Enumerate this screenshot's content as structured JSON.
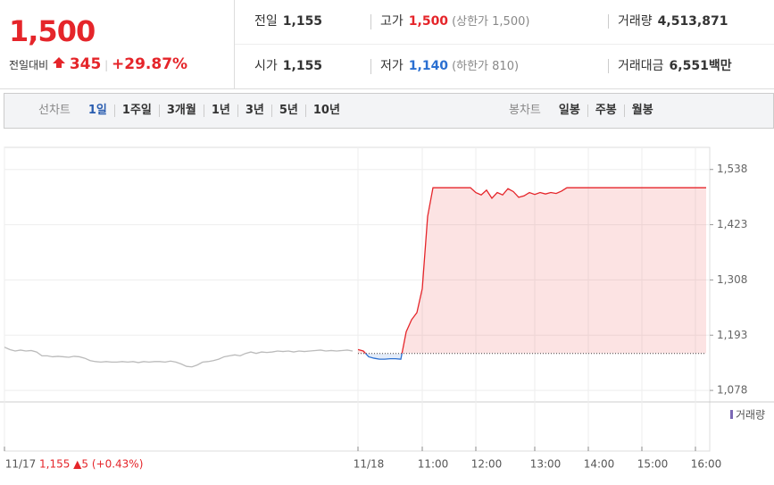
{
  "header": {
    "price": "1,500",
    "change_label": "전일대비",
    "change": "345",
    "change_pct": "+29.87%",
    "stats": [
      [
        {
          "label": "전일",
          "value": "1,155"
        },
        {
          "label": "고가",
          "value": "1,500",
          "note": "(상한가 1,500)"
        },
        {
          "label": "거래량",
          "value": "4,513,871"
        }
      ],
      [
        {
          "label": "시가",
          "value": "1,155"
        },
        {
          "label": "저가",
          "value": "1,140",
          "note": "(하한가 810)"
        },
        {
          "label": "거래대금",
          "value": "6,551",
          "unit": "백만"
        }
      ]
    ]
  },
  "tabs": {
    "line_label": "선차트",
    "periods": [
      "1일",
      "1주일",
      "3개월",
      "1년",
      "3년",
      "5년",
      "10년"
    ],
    "candle_label": "봉차트",
    "candles": [
      "일봉",
      "주봉",
      "월봉"
    ]
  },
  "chart_data": {
    "type": "line",
    "base_line": 1155,
    "volume_label": "거래량",
    "annotation": "1,155 ▲5 (+0.43%)",
    "ylim": [
      1054,
      1584
    ],
    "yticks": [
      {
        "value": 1078,
        "label": "1,078"
      },
      {
        "value": 1193,
        "label": "1,193"
      },
      {
        "value": 1308,
        "label": "1,308"
      },
      {
        "value": 1423,
        "label": "1,423"
      },
      {
        "value": 1538,
        "label": "1,538"
      }
    ],
    "grid": true,
    "categories": [
      "11/17",
      null,
      null,
      null,
      null,
      null,
      null,
      null,
      null,
      null,
      null,
      null,
      null,
      null,
      null,
      null,
      null,
      null,
      null,
      null,
      null,
      null,
      null,
      null,
      null,
      null,
      null,
      null,
      null,
      null,
      null,
      null,
      null,
      null,
      null,
      null,
      null,
      null,
      null,
      null,
      null,
      null,
      null,
      null,
      null,
      null,
      null,
      null,
      null,
      null,
      null,
      null,
      null,
      null,
      null,
      null,
      null,
      null,
      null,
      null,
      null,
      null,
      null,
      null,
      null,
      null,
      "11/18",
      null,
      null,
      null,
      null,
      null,
      null,
      null,
      null,
      null,
      null,
      null,
      "11:00",
      null,
      null,
      null,
      null,
      null,
      null,
      null,
      null,
      null,
      "12:00",
      null,
      null,
      null,
      null,
      null,
      null,
      null,
      null,
      null,
      null,
      "13:00",
      null,
      null,
      null,
      null,
      null,
      null,
      null,
      null,
      null,
      "14:00",
      null,
      null,
      null,
      null,
      null,
      null,
      null,
      null,
      null,
      "15:00",
      null,
      null,
      null,
      null,
      null,
      null,
      null,
      null,
      null,
      "16:00",
      null,
      null
    ],
    "series": [
      {
        "color": "#bbbbbb",
        "values": [
          1168,
          1163,
          1160,
          1162,
          1160,
          1161,
          1158,
          1150,
          1150,
          1148,
          1149,
          1148,
          1147,
          1149,
          1148,
          1145,
          1140,
          1138,
          1137,
          1138,
          1137,
          1137,
          1138,
          1137,
          1138,
          1136,
          1138,
          1137,
          1138,
          1138,
          1137,
          1139,
          1137,
          1133,
          1128,
          1127,
          1131,
          1137,
          1138,
          1140,
          1143,
          1148,
          1150,
          1152,
          1150,
          1155,
          1158,
          1155,
          1158,
          1157,
          1158,
          1160,
          1159,
          1160,
          1158,
          1160,
          1159,
          1160,
          1161,
          1162,
          1160,
          1161,
          1160,
          1161,
          1162,
          1160,
          null,
          null,
          null,
          null,
          null,
          null,
          null,
          null,
          null,
          null,
          null,
          null,
          null,
          null,
          null,
          null,
          null,
          null,
          null,
          null,
          null,
          null,
          null,
          null,
          null,
          null,
          null,
          null,
          null,
          null,
          null,
          null,
          null,
          null,
          null,
          null,
          null,
          null,
          null,
          null,
          null,
          null,
          null,
          null,
          null,
          null,
          null,
          null,
          null,
          null,
          null,
          null,
          null,
          null,
          null,
          null,
          null,
          null,
          null,
          null,
          null,
          null,
          null,
          null,
          null,
          null
        ]
      },
      {
        "color": "#e5252a",
        "color_below": "#2a6fd1",
        "values": [
          null,
          null,
          null,
          null,
          null,
          null,
          null,
          null,
          null,
          null,
          null,
          null,
          null,
          null,
          null,
          null,
          null,
          null,
          null,
          null,
          null,
          null,
          null,
          null,
          null,
          null,
          null,
          null,
          null,
          null,
          null,
          null,
          null,
          null,
          null,
          null,
          null,
          null,
          null,
          null,
          null,
          null,
          null,
          null,
          null,
          null,
          null,
          null,
          null,
          null,
          null,
          null,
          null,
          null,
          null,
          null,
          null,
          null,
          null,
          null,
          null,
          null,
          null,
          null,
          null,
          null,
          1163,
          1160,
          1148,
          1145,
          1143,
          1143,
          1144,
          1144,
          1143,
          1200,
          1225,
          1240,
          1290,
          1440,
          1500,
          1500,
          1500,
          1500,
          1500,
          1500,
          1500,
          1500,
          1490,
          1485,
          1495,
          1478,
          1490,
          1485,
          1498,
          1492,
          1480,
          1483,
          1490,
          1486,
          1490,
          1487,
          1490,
          1488,
          1493,
          1500,
          1500,
          1500,
          1500,
          1500,
          1500,
          1500,
          1500,
          1500,
          1500,
          1500,
          1500,
          1500,
          1500,
          1500,
          1500,
          1500,
          1500,
          1500,
          1500,
          1500,
          1500,
          1500,
          1500,
          1500,
          1500,
          1500
        ]
      }
    ]
  }
}
